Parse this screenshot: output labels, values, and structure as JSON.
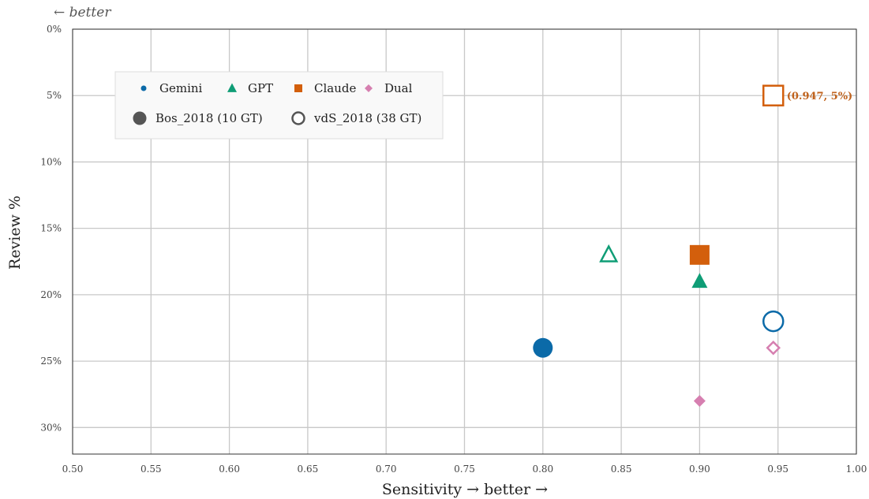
{
  "chart_data": {
    "type": "scatter",
    "title": "",
    "xlabel": "Sensitivity → better →",
    "ylabel": "Review %",
    "corner_note": "← better",
    "xlim": [
      0.5,
      1.0
    ],
    "ylim": [
      0,
      32
    ],
    "y_inverted": true,
    "grid": true,
    "legend_placement": "top-left",
    "x_ticks": [
      {
        "value": 0.5,
        "label": "0.50"
      },
      {
        "value": 0.55,
        "label": "0.55"
      },
      {
        "value": 0.6,
        "label": "0.60"
      },
      {
        "value": 0.65,
        "label": "0.65"
      },
      {
        "value": 0.7,
        "label": "0.70"
      },
      {
        "value": 0.75,
        "label": "0.75"
      },
      {
        "value": 0.8,
        "label": "0.80"
      },
      {
        "value": 0.85,
        "label": "0.85"
      },
      {
        "value": 0.9,
        "label": "0.90"
      },
      {
        "value": 0.95,
        "label": "0.95"
      },
      {
        "value": 1.0,
        "label": "1.00"
      }
    ],
    "y_ticks": [
      {
        "value": 0,
        "label": "0%"
      },
      {
        "value": 5,
        "label": "5%"
      },
      {
        "value": 10,
        "label": "10%"
      },
      {
        "value": 15,
        "label": "15%"
      },
      {
        "value": 20,
        "label": "20%"
      },
      {
        "value": 25,
        "label": "25%"
      },
      {
        "value": 30,
        "label": "30%"
      }
    ],
    "models": [
      {
        "name": "Gemini",
        "shape": "circle",
        "color": "#0b6aa8"
      },
      {
        "name": "GPT",
        "shape": "triangle",
        "color": "#0f9d76"
      },
      {
        "name": "Claude",
        "shape": "square",
        "color": "#d35f0c"
      },
      {
        "name": "Dual",
        "shape": "diamond",
        "color": "#d67fb0"
      }
    ],
    "datasets": [
      {
        "name": "Bos_2018 (10 GT)",
        "fill": "filled"
      },
      {
        "name": "vdS_2018 (38 GT)",
        "fill": "hollow"
      }
    ],
    "points": [
      {
        "model": "Gemini",
        "dataset": "Bos_2018 (10 GT)",
        "x": 0.8,
        "y": 24
      },
      {
        "model": "Gemini",
        "dataset": "vdS_2018 (38 GT)",
        "x": 0.947,
        "y": 22
      },
      {
        "model": "GPT",
        "dataset": "Bos_2018 (10 GT)",
        "x": 0.9,
        "y": 19
      },
      {
        "model": "GPT",
        "dataset": "vdS_2018 (38 GT)",
        "x": 0.842,
        "y": 17
      },
      {
        "model": "Claude",
        "dataset": "Bos_2018 (10 GT)",
        "x": 0.9,
        "y": 17
      },
      {
        "model": "Claude",
        "dataset": "vdS_2018 (38 GT)",
        "x": 0.947,
        "y": 5
      },
      {
        "model": "Dual",
        "dataset": "Bos_2018 (10 GT)",
        "x": 0.9,
        "y": 28
      },
      {
        "model": "Dual",
        "dataset": "vdS_2018 (38 GT)",
        "x": 0.947,
        "y": 24
      }
    ],
    "annotations": [
      {
        "text": "(0.947, 5%)",
        "x": 0.947,
        "y": 5,
        "color": "#c0621c"
      }
    ]
  }
}
